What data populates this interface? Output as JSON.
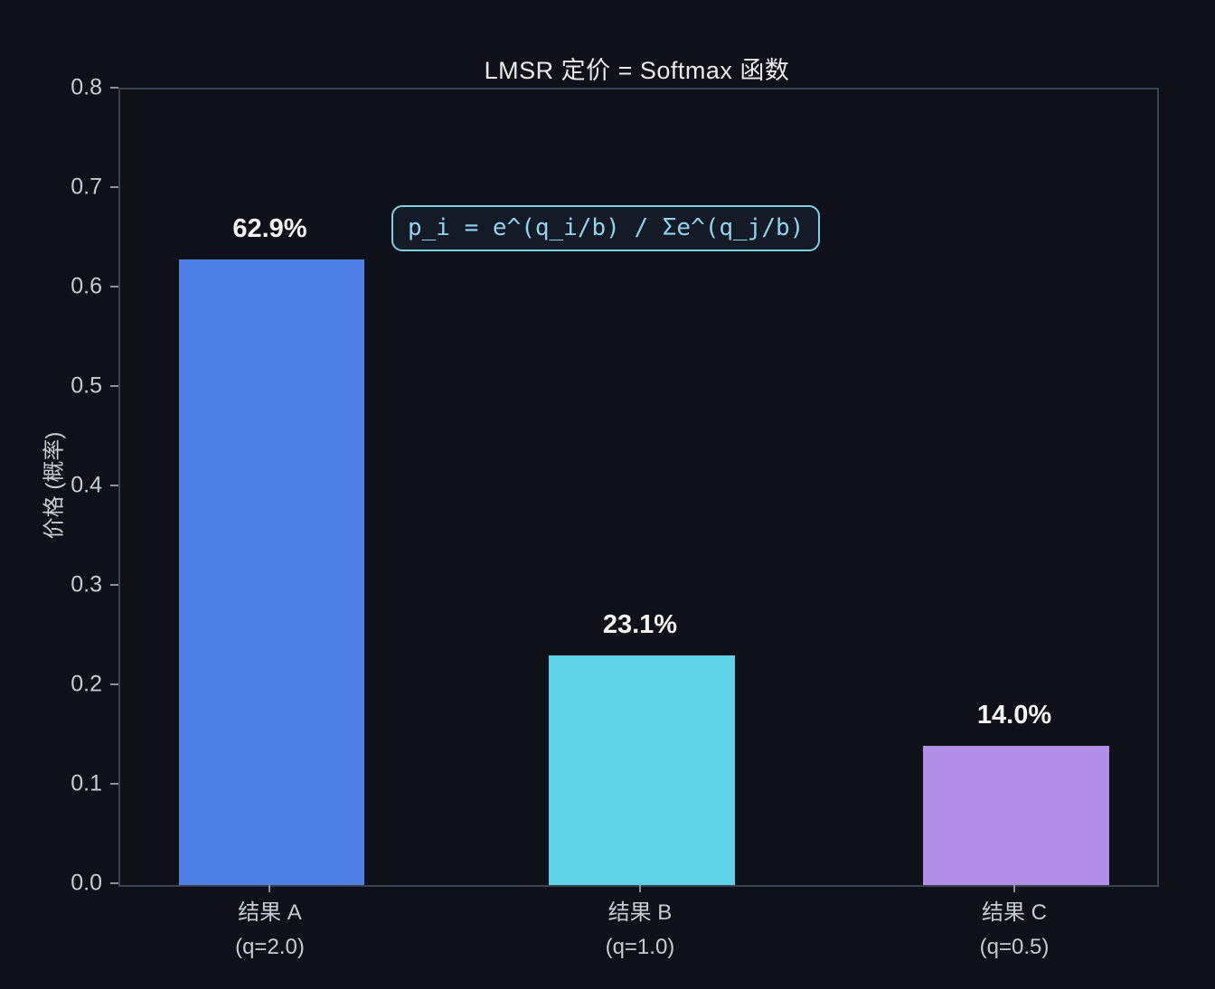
{
  "chart_data": {
    "type": "bar",
    "title": "LMSR 定价 = Softmax 函数",
    "xlabel": "",
    "ylabel": "价格 (概率)",
    "categories": [
      {
        "label": "结果 A",
        "sublabel": "(q=2.0)"
      },
      {
        "label": "结果 B",
        "sublabel": "(q=1.0)"
      },
      {
        "label": "结果 C",
        "sublabel": "(q=0.5)"
      }
    ],
    "values": [
      0.629,
      0.231,
      0.14
    ],
    "value_labels": [
      "62.9%",
      "23.1%",
      "14.0%"
    ],
    "bar_colors": [
      "#4f80e6",
      "#5ed3e8",
      "#b18fe9"
    ],
    "ylim": [
      0.0,
      0.8
    ],
    "yticks": [
      0.0,
      0.1,
      0.2,
      0.3,
      0.4,
      0.5,
      0.6,
      0.7,
      0.8
    ],
    "ytick_labels": [
      "0.0",
      "0.1",
      "0.2",
      "0.3",
      "0.4",
      "0.5",
      "0.6",
      "0.7",
      "0.8"
    ],
    "grid": false,
    "legend": null,
    "layout_hints": {
      "bar_center_fracs": [
        0.146,
        0.503,
        0.864
      ],
      "bar_width_frac": 0.179
    },
    "annotation": {
      "text": "p_i = e^(q_i/b) / Σe^(q_j/b)",
      "text_color": "#92d4ec",
      "border_color": "#7ecfe8"
    }
  },
  "colors": {
    "background": "#0e1117",
    "axes_frame": "#3a4150",
    "tick_label": "#c6ccd4",
    "title_text": "#e8eaee",
    "value_label_text": "#f2f4f7"
  }
}
